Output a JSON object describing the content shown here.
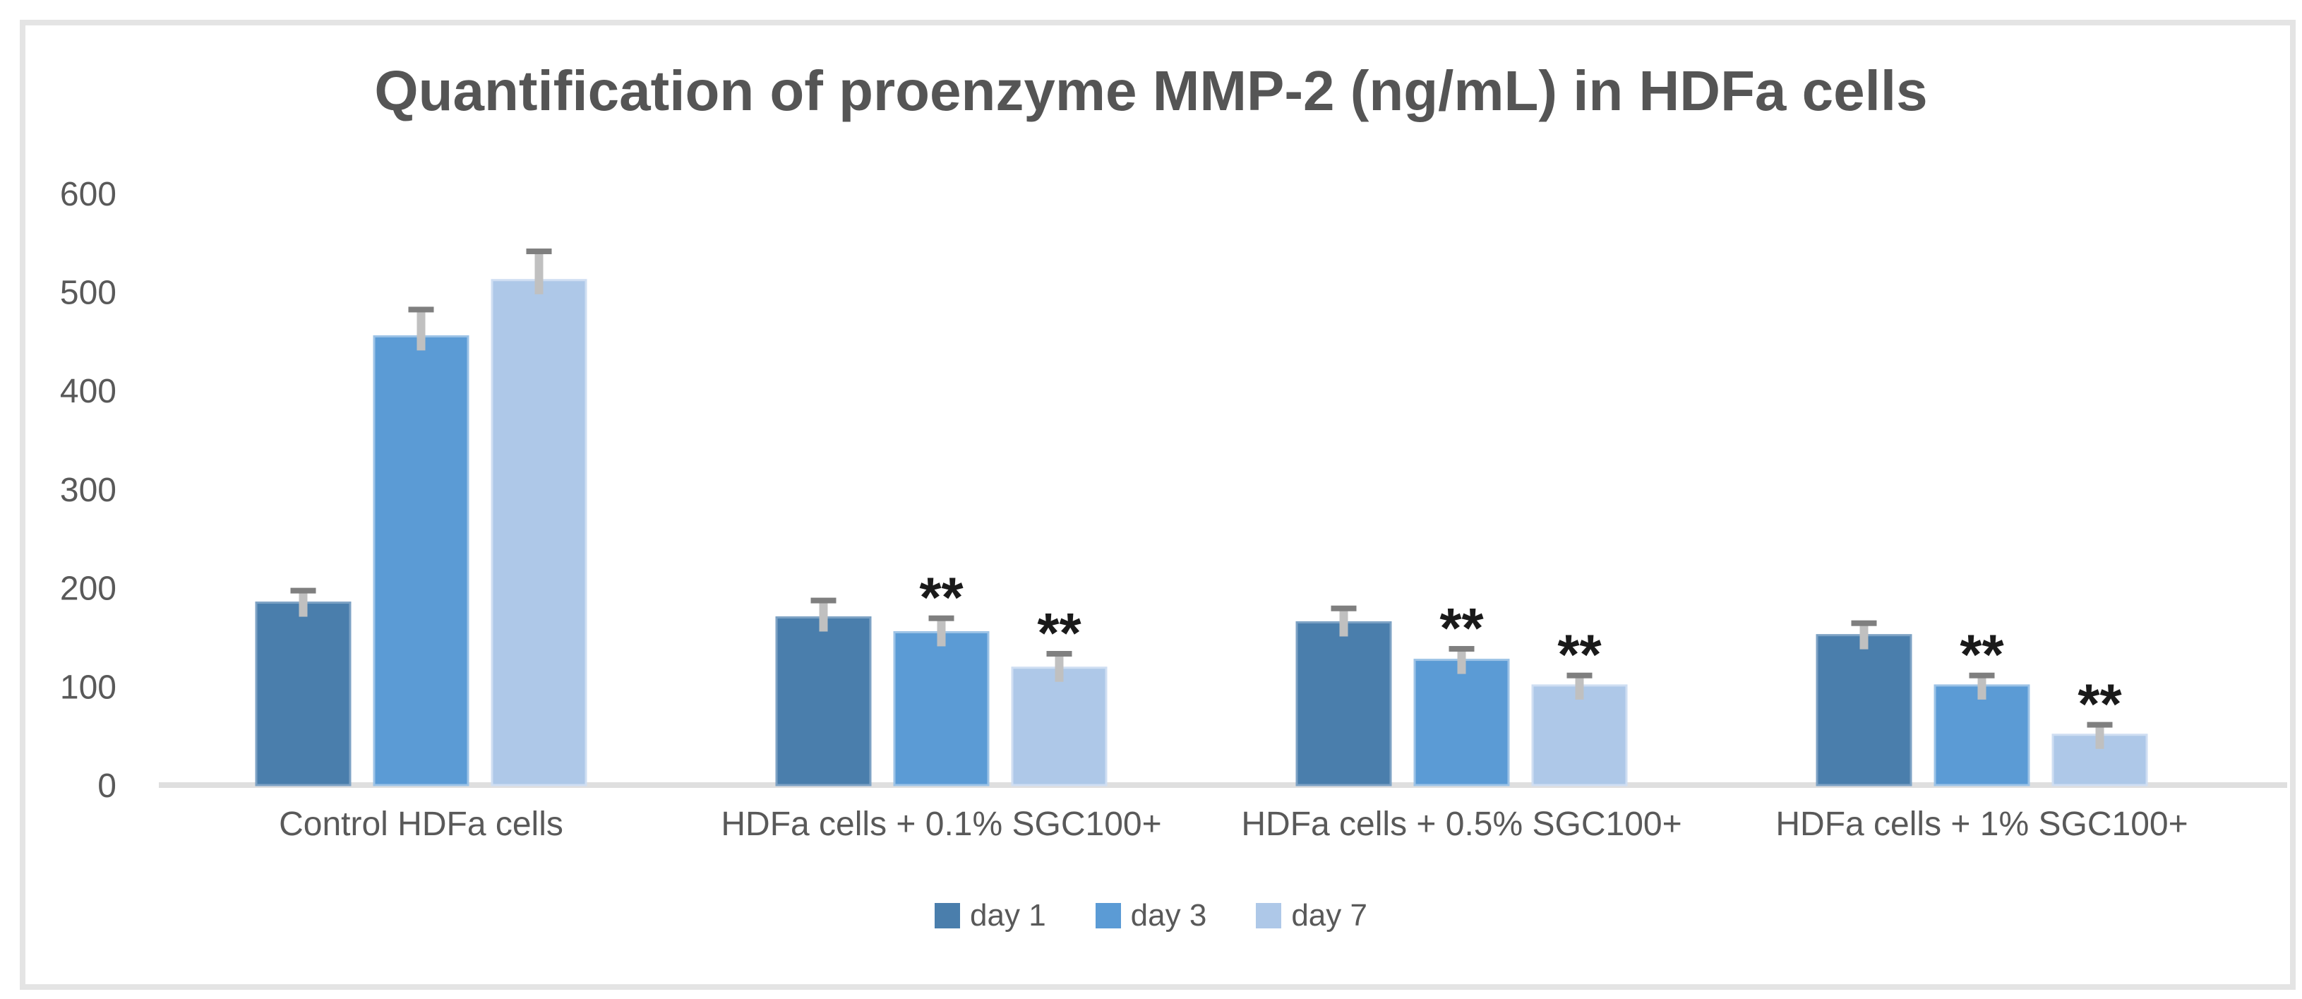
{
  "chart_data": {
    "type": "bar",
    "title": "Quantification of proenzyme MMP-2 (ng/mL) in HDFa cells",
    "xlabel": "",
    "ylabel": "",
    "ylim": [
      0,
      600
    ],
    "yticks": [
      0,
      100,
      200,
      300,
      400,
      500,
      600
    ],
    "grid": false,
    "legend_position": "bottom",
    "significance_marker": "**",
    "categories": [
      "Control HDFa cells",
      "HDFa cells + 0.1% SGC100+",
      "HDFa cells + 0.5% SGC100+",
      "HDFa cells + 1% SGC100+"
    ],
    "series": [
      {
        "name": "day 1",
        "color": "#4A7EAC",
        "edge_color": "#7DA2C4",
        "values": [
          185,
          170,
          165,
          152
        ],
        "errors": [
          15,
          20,
          17,
          15
        ],
        "significant": [
          false,
          false,
          false,
          false
        ]
      },
      {
        "name": "day 3",
        "color": "#5B9BD5",
        "edge_color": "#9DC3E6",
        "values": [
          455,
          155,
          127,
          101
        ],
        "errors": [
          30,
          17,
          14,
          13
        ],
        "significant": [
          false,
          true,
          true,
          true
        ]
      },
      {
        "name": "day 7",
        "color": "#AEC8E8",
        "edge_color": "#CFDEF2",
        "values": [
          512,
          119,
          101,
          51
        ],
        "errors": [
          32,
          17,
          13,
          13
        ],
        "significant": [
          false,
          true,
          true,
          true
        ]
      }
    ],
    "colors": {
      "error_bar": "#C0C0C0",
      "error_cap": "#7F7F7F",
      "axis_line": "#DFDFDF",
      "text": "#595959",
      "title": "#555555",
      "marker": "#1A1A1A",
      "frame_border": "#E4E4E4"
    }
  }
}
